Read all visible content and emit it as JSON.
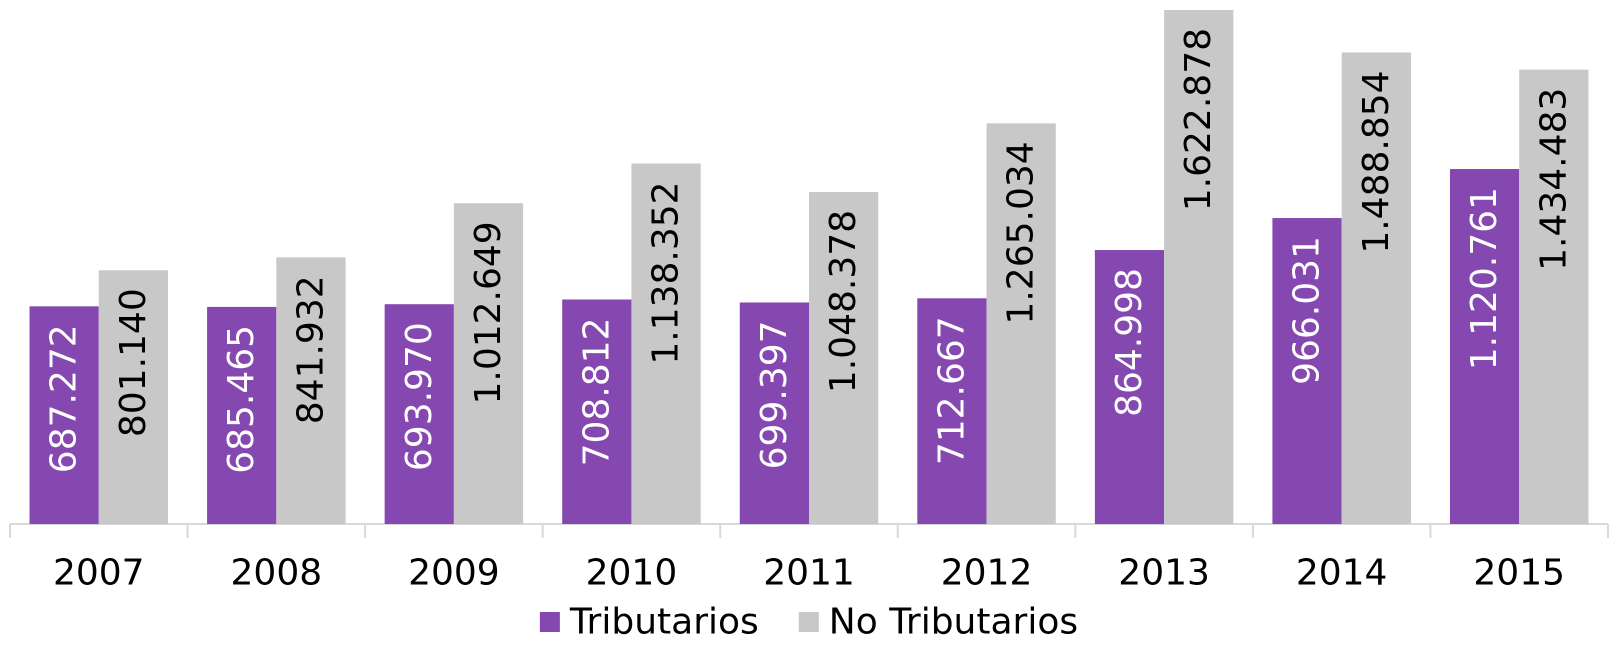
{
  "chart_data": {
    "type": "bar",
    "categories": [
      "2007",
      "2008",
      "2009",
      "2010",
      "2011",
      "2012",
      "2013",
      "2014",
      "2015"
    ],
    "series": [
      {
        "name": "Tributarios",
        "color": "#8548b1",
        "values": [
          687272,
          685465,
          693970,
          708812,
          699397,
          712667,
          864998,
          966031,
          1120761
        ],
        "value_labels": [
          "687.272",
          "685.465",
          "693.970",
          "708.812",
          "699.397",
          "712.667",
          "864.998",
          "966.031",
          "1.120.761"
        ]
      },
      {
        "name": "No Tributarios",
        "color": "#c8c8c8",
        "values": [
          801140,
          841932,
          1012649,
          1138352,
          1048378,
          1265034,
          1622878,
          1488854,
          1434483
        ],
        "value_labels": [
          "801.140",
          "841.932",
          "1.012.649",
          "1.138.352",
          "1.048.378",
          "1.265.034",
          "1.622.878",
          "1.488.854",
          "1.434.483"
        ]
      }
    ],
    "legend": "bottom"
  }
}
